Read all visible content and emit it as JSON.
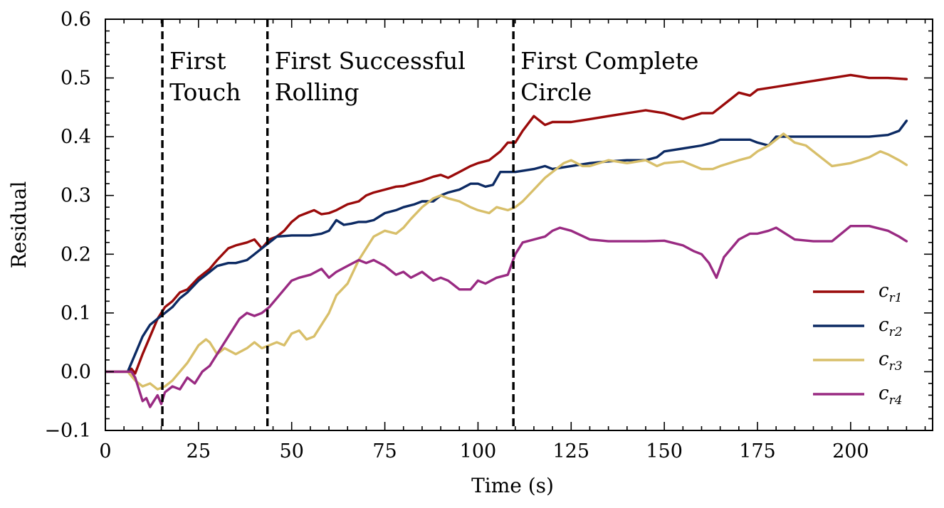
{
  "chart_data": {
    "type": "line",
    "title": "",
    "xlabel": "Time (s)",
    "ylabel": "Residual",
    "xlim": [
      0,
      222
    ],
    "ylim": [
      -0.1,
      0.6
    ],
    "x_ticks": [
      0,
      25,
      50,
      75,
      100,
      125,
      150,
      175,
      200
    ],
    "x_tick_labels": [
      "0",
      "25",
      "50",
      "75",
      "100",
      "125",
      "150",
      "175",
      "200"
    ],
    "y_ticks": [
      -0.1,
      0.0,
      0.1,
      0.2,
      0.3,
      0.4,
      0.5,
      0.6
    ],
    "y_tick_labels": [
      "−0.1",
      "0.0",
      "0.1",
      "0.2",
      "0.3",
      "0.4",
      "0.5",
      "0.6"
    ],
    "grid": false,
    "legend_position": "bottom-right",
    "events": [
      {
        "x": 15.3,
        "lines": [
          "First",
          "Touch"
        ]
      },
      {
        "x": 43.5,
        "lines": [
          "First Successful",
          "Rolling"
        ]
      },
      {
        "x": 109.5,
        "lines": [
          "First Complete",
          "Circle"
        ]
      }
    ],
    "series": [
      {
        "name": "c_r1",
        "legend_base": "c",
        "legend_sub": "r1",
        "color": "#9a0a0a",
        "x": [
          0,
          6,
          7,
          8,
          10,
          12,
          14,
          16,
          18,
          20,
          22,
          25,
          28,
          30,
          33,
          35,
          38,
          40,
          42,
          44,
          46,
          48,
          50,
          52,
          54,
          56,
          58,
          60,
          62,
          65,
          68,
          70,
          72,
          75,
          78,
          80,
          82,
          85,
          88,
          90,
          92,
          95,
          98,
          100,
          103,
          106,
          108,
          110,
          112,
          115,
          118,
          120,
          125,
          130,
          135,
          140,
          145,
          150,
          155,
          160,
          163,
          165,
          168,
          170,
          173,
          175,
          180,
          185,
          190,
          195,
          200,
          202,
          205,
          210,
          215
        ],
        "y": [
          0.0,
          0.0,
          0.005,
          -0.003,
          0.03,
          0.06,
          0.09,
          0.11,
          0.12,
          0.135,
          0.14,
          0.16,
          0.175,
          0.19,
          0.21,
          0.215,
          0.22,
          0.225,
          0.21,
          0.225,
          0.23,
          0.24,
          0.255,
          0.265,
          0.27,
          0.275,
          0.268,
          0.27,
          0.275,
          0.285,
          0.29,
          0.3,
          0.305,
          0.31,
          0.315,
          0.316,
          0.32,
          0.325,
          0.332,
          0.335,
          0.33,
          0.34,
          0.35,
          0.355,
          0.36,
          0.375,
          0.39,
          0.39,
          0.41,
          0.435,
          0.42,
          0.425,
          0.425,
          0.43,
          0.435,
          0.44,
          0.445,
          0.44,
          0.43,
          0.44,
          0.44,
          0.45,
          0.465,
          0.475,
          0.47,
          0.48,
          0.485,
          0.49,
          0.495,
          0.5,
          0.505,
          0.503,
          0.5,
          0.5,
          0.498
        ]
      },
      {
        "name": "c_r2",
        "legend_base": "c",
        "legend_sub": "r2",
        "color": "#0c2a63",
        "x": [
          0,
          6,
          8,
          10,
          12,
          14,
          16,
          18,
          20,
          22,
          25,
          28,
          30,
          33,
          35,
          38,
          40,
          42,
          44,
          46,
          50,
          55,
          58,
          60,
          62,
          64,
          66,
          68,
          70,
          72,
          75,
          78,
          80,
          83,
          85,
          88,
          90,
          92,
          95,
          98,
          100,
          102,
          104,
          106,
          108,
          110,
          115,
          118,
          120,
          125,
          130,
          135,
          140,
          145,
          148,
          150,
          155,
          160,
          163,
          165,
          170,
          173,
          175,
          178,
          180,
          185,
          190,
          195,
          200,
          205,
          210,
          213,
          215
        ],
        "y": [
          0.0,
          0.0,
          0.03,
          0.06,
          0.08,
          0.09,
          0.1,
          0.11,
          0.125,
          0.135,
          0.155,
          0.17,
          0.18,
          0.185,
          0.185,
          0.19,
          0.2,
          0.21,
          0.22,
          0.23,
          0.232,
          0.232,
          0.235,
          0.24,
          0.258,
          0.25,
          0.252,
          0.255,
          0.255,
          0.258,
          0.27,
          0.275,
          0.28,
          0.285,
          0.29,
          0.29,
          0.3,
          0.305,
          0.31,
          0.32,
          0.32,
          0.315,
          0.318,
          0.34,
          0.34,
          0.34,
          0.345,
          0.35,
          0.345,
          0.35,
          0.355,
          0.358,
          0.36,
          0.36,
          0.365,
          0.375,
          0.38,
          0.385,
          0.39,
          0.395,
          0.395,
          0.395,
          0.39,
          0.385,
          0.4,
          0.4,
          0.4,
          0.4,
          0.4,
          0.4,
          0.403,
          0.41,
          0.427
        ]
      },
      {
        "name": "c_r3",
        "legend_base": "c",
        "legend_sub": "r3",
        "color": "#d8bf6a",
        "x": [
          0,
          6,
          8,
          10,
          12,
          14,
          16,
          18,
          20,
          22,
          25,
          27,
          28,
          30,
          32,
          35,
          38,
          40,
          42,
          44,
          46,
          48,
          50,
          52,
          54,
          56,
          58,
          60,
          62,
          65,
          68,
          70,
          72,
          75,
          78,
          80,
          82,
          85,
          88,
          90,
          92,
          95,
          98,
          100,
          103,
          105,
          108,
          110,
          112,
          115,
          118,
          120,
          123,
          125,
          128,
          130,
          135,
          140,
          145,
          148,
          150,
          155,
          160,
          163,
          165,
          170,
          173,
          175,
          178,
          180,
          182,
          185,
          188,
          190,
          195,
          200,
          205,
          208,
          210,
          213,
          215
        ],
        "y": [
          0.0,
          0.0,
          -0.015,
          -0.025,
          -0.02,
          -0.03,
          -0.025,
          -0.015,
          0.0,
          0.015,
          0.045,
          0.055,
          0.05,
          0.03,
          0.04,
          0.03,
          0.04,
          0.05,
          0.04,
          0.045,
          0.05,
          0.045,
          0.065,
          0.07,
          0.055,
          0.06,
          0.08,
          0.1,
          0.13,
          0.15,
          0.19,
          0.21,
          0.23,
          0.24,
          0.235,
          0.245,
          0.26,
          0.28,
          0.295,
          0.3,
          0.295,
          0.29,
          0.28,
          0.275,
          0.27,
          0.28,
          0.275,
          0.28,
          0.29,
          0.31,
          0.33,
          0.34,
          0.355,
          0.36,
          0.35,
          0.35,
          0.36,
          0.355,
          0.36,
          0.35,
          0.355,
          0.358,
          0.345,
          0.345,
          0.35,
          0.36,
          0.365,
          0.375,
          0.385,
          0.395,
          0.405,
          0.39,
          0.385,
          0.375,
          0.35,
          0.355,
          0.365,
          0.375,
          0.37,
          0.36,
          0.352
        ]
      },
      {
        "name": "c_r4",
        "legend_base": "c",
        "legend_sub": "r4",
        "color": "#992a82",
        "x": [
          0,
          7,
          8,
          9,
          10,
          11,
          12,
          13,
          14,
          15,
          16,
          18,
          20,
          22,
          24,
          26,
          28,
          30,
          32,
          34,
          36,
          38,
          40,
          42,
          44,
          46,
          48,
          50,
          52,
          55,
          58,
          60,
          62,
          65,
          68,
          70,
          72,
          75,
          78,
          80,
          82,
          85,
          88,
          90,
          92,
          95,
          98,
          100,
          102,
          105,
          108,
          110,
          112,
          115,
          118,
          120,
          122,
          125,
          130,
          135,
          140,
          145,
          150,
          155,
          158,
          160,
          162,
          164,
          166,
          168,
          170,
          173,
          175,
          178,
          180,
          185,
          190,
          195,
          200,
          205,
          210,
          213,
          215
        ],
        "y": [
          0.0,
          0.0,
          -0.01,
          -0.03,
          -0.05,
          -0.045,
          -0.06,
          -0.05,
          -0.04,
          -0.055,
          -0.035,
          -0.025,
          -0.03,
          -0.01,
          -0.02,
          0.0,
          0.01,
          0.03,
          0.05,
          0.07,
          0.09,
          0.1,
          0.095,
          0.1,
          0.11,
          0.125,
          0.14,
          0.155,
          0.16,
          0.165,
          0.175,
          0.16,
          0.17,
          0.18,
          0.19,
          0.185,
          0.19,
          0.18,
          0.165,
          0.17,
          0.16,
          0.17,
          0.155,
          0.16,
          0.155,
          0.14,
          0.14,
          0.155,
          0.15,
          0.16,
          0.165,
          0.2,
          0.22,
          0.225,
          0.23,
          0.24,
          0.245,
          0.24,
          0.225,
          0.222,
          0.222,
          0.222,
          0.223,
          0.215,
          0.205,
          0.2,
          0.185,
          0.16,
          0.195,
          0.21,
          0.225,
          0.235,
          0.235,
          0.24,
          0.245,
          0.225,
          0.222,
          0.222,
          0.248,
          0.248,
          0.24,
          0.23,
          0.222
        ]
      }
    ]
  }
}
